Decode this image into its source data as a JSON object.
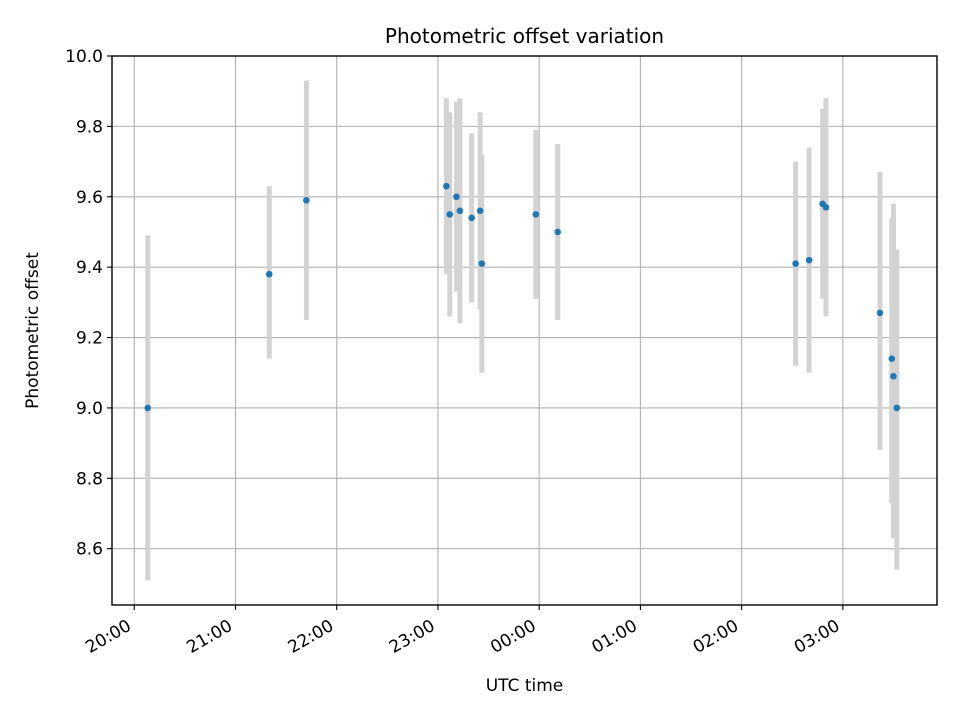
{
  "chart_data": {
    "type": "scatter",
    "title": "Photometric offset variation",
    "xlabel": "UTC time",
    "ylabel": "Photometric offset",
    "x_axis": {
      "unit": "hours after 20:00 UTC",
      "xlim": [
        -0.22,
        7.93
      ],
      "ticks": [
        0,
        1,
        2,
        3,
        4,
        5,
        6,
        7
      ],
      "tick_labels": [
        "20:00",
        "21:00",
        "22:00",
        "23:00",
        "00:00",
        "01:00",
        "02:00",
        "03:00"
      ]
    },
    "y_axis": {
      "ylim": [
        8.44,
        10.0
      ],
      "ticks": [
        8.6,
        8.8,
        9.0,
        9.2,
        9.4,
        9.6,
        9.8,
        10.0
      ],
      "tick_labels": [
        "8.6",
        "8.8",
        "9.0",
        "9.2",
        "9.4",
        "9.6",
        "9.8",
        "10.0"
      ]
    },
    "grid": true,
    "colors": {
      "points": "#1f77b4",
      "errorbars": "#d3d3d3",
      "grid": "#b0b0b0"
    },
    "points": [
      {
        "time": "20:08",
        "y": 9.0,
        "ylo": 8.51,
        "yhi": 9.49
      },
      {
        "time": "21:20",
        "y": 9.38,
        "ylo": 9.14,
        "yhi": 9.63
      },
      {
        "time": "21:42",
        "y": 9.59,
        "ylo": 9.25,
        "yhi": 9.93
      },
      {
        "time": "23:05",
        "y": 9.63,
        "ylo": 9.38,
        "yhi": 9.88
      },
      {
        "time": "23:07",
        "y": 9.55,
        "ylo": 9.26,
        "yhi": 9.84
      },
      {
        "time": "23:11",
        "y": 9.6,
        "ylo": 9.33,
        "yhi": 9.87
      },
      {
        "time": "23:13",
        "y": 9.56,
        "ylo": 9.24,
        "yhi": 9.88
      },
      {
        "time": "23:20",
        "y": 9.54,
        "ylo": 9.3,
        "yhi": 9.78
      },
      {
        "time": "23:25",
        "y": 9.56,
        "ylo": 9.28,
        "yhi": 9.84
      },
      {
        "time": "23:26",
        "y": 9.41,
        "ylo": 9.1,
        "yhi": 9.72
      },
      {
        "time": "23:58",
        "y": 9.55,
        "ylo": 9.31,
        "yhi": 9.79
      },
      {
        "time": "00:11",
        "y": 9.5,
        "ylo": 9.25,
        "yhi": 9.75
      },
      {
        "time": "02:32",
        "y": 9.41,
        "ylo": 9.12,
        "yhi": 9.7
      },
      {
        "time": "02:40",
        "y": 9.42,
        "ylo": 9.1,
        "yhi": 9.74
      },
      {
        "time": "02:48",
        "y": 9.58,
        "ylo": 9.31,
        "yhi": 9.85
      },
      {
        "time": "02:50",
        "y": 9.57,
        "ylo": 9.26,
        "yhi": 9.88
      },
      {
        "time": "03:22",
        "y": 9.27,
        "ylo": 8.88,
        "yhi": 9.67
      },
      {
        "time": "03:29",
        "y": 9.14,
        "ylo": 8.73,
        "yhi": 9.54
      },
      {
        "time": "03:30",
        "y": 9.09,
        "ylo": 8.63,
        "yhi": 9.58
      },
      {
        "time": "03:32",
        "y": 9.0,
        "ylo": 8.54,
        "yhi": 9.45
      }
    ]
  }
}
